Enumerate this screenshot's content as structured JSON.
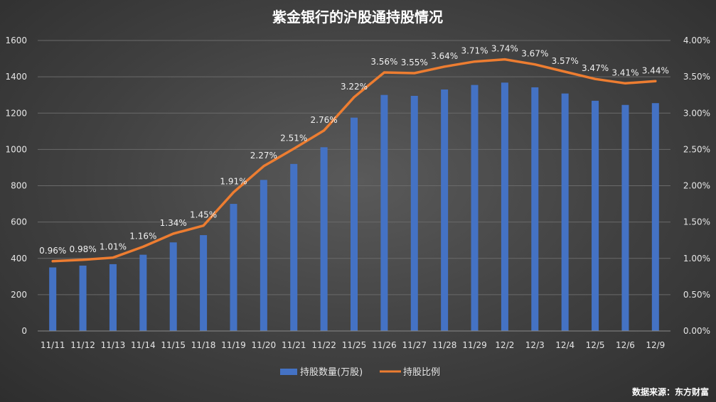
{
  "chart_data": {
    "type": "bar",
    "title": "紫金银行的沪股通持股情况",
    "categories": [
      "11/11",
      "11/12",
      "11/13",
      "11/14",
      "11/15",
      "11/18",
      "11/19",
      "11/20",
      "11/21",
      "11/22",
      "11/25",
      "11/26",
      "11/27",
      "11/28",
      "11/29",
      "12/2",
      "12/3",
      "12/4",
      "12/5",
      "12/6",
      "12/9"
    ],
    "series": [
      {
        "name": "持股数量(万股)",
        "type": "bar",
        "axis": "left",
        "color": "#4472c4",
        "values": [
          350,
          360,
          368,
          420,
          488,
          528,
          700,
          832,
          920,
          1012,
          1175,
          1300,
          1295,
          1330,
          1355,
          1368,
          1342,
          1308,
          1268,
          1245,
          1255
        ]
      },
      {
        "name": "持股比例",
        "type": "line",
        "axis": "right",
        "color": "#ed7d31",
        "values": [
          0.96,
          0.98,
          1.01,
          1.16,
          1.34,
          1.45,
          1.91,
          2.27,
          2.51,
          2.76,
          3.22,
          3.56,
          3.55,
          3.64,
          3.71,
          3.74,
          3.67,
          3.57,
          3.47,
          3.41,
          3.44
        ],
        "labels": [
          "0.96%",
          "0.98%",
          "1.01%",
          "1.16%",
          "1.34%",
          "1.45%",
          "1.91%",
          "2.27%",
          "2.51%",
          "2.76%",
          "3.22%",
          "3.56%",
          "3.55%",
          "3.64%",
          "3.71%",
          "3.74%",
          "3.67%",
          "3.57%",
          "3.47%",
          "3.41%",
          "3.44%"
        ]
      }
    ],
    "left_axis": {
      "range": [
        0,
        1600
      ],
      "ticks": [
        "0",
        "200",
        "400",
        "600",
        "800",
        "1000",
        "1200",
        "1400",
        "1600"
      ]
    },
    "right_axis": {
      "range": [
        0,
        4
      ],
      "ticks": [
        "0.00%",
        "0.50%",
        "1.00%",
        "1.50%",
        "2.00%",
        "2.50%",
        "3.00%",
        "3.50%",
        "4.00%"
      ]
    },
    "grid": true,
    "legend_position": "bottom-center",
    "source": "数据来源：东方财富"
  }
}
